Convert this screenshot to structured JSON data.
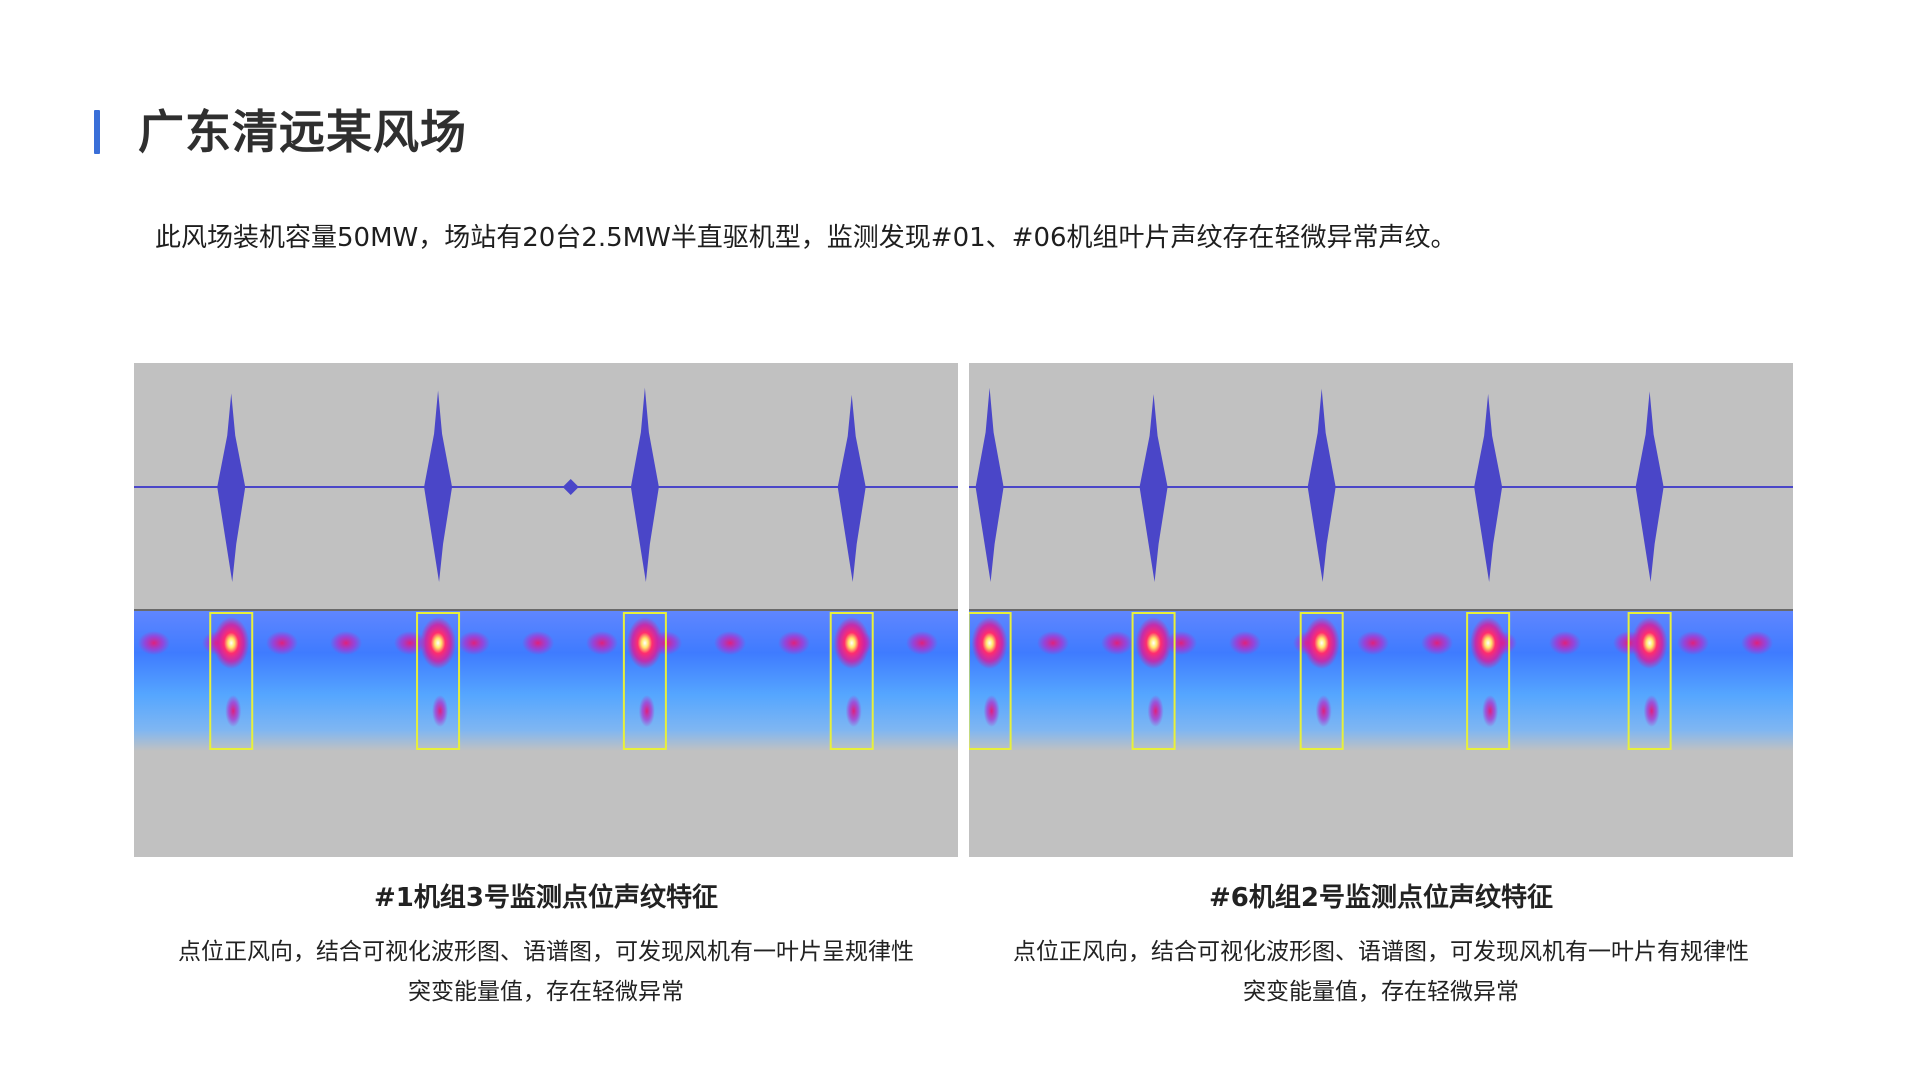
{
  "header": {
    "title": "广东清远某风场",
    "accent_color": "#3a6fd8"
  },
  "intro": "此风场装机容量50MW，场站有20台2.5MW半直驱机型，监测发现#01、#06机组叶片声纹存在轻微异常声纹。",
  "figures": [
    {
      "title": "#1机组3号监测点位声纹特征",
      "desc_line1": "点位正风向，结合可视化波形图、语谱图，可发现风机有一叶片呈规律性",
      "desc_line2": "突变能量值，存在轻微异常",
      "peaks": [
        0.118,
        0.369,
        0.62,
        0.871
      ],
      "small_peaks": [
        0.53
      ],
      "waveform_color": "#4a46c8",
      "highlight_color": "#e8f03a"
    },
    {
      "title": "#6机组2号监测点位声纹特征",
      "desc_line1": "点位正风向，结合可视化波形图、语谱图，可发现风机有一叶片有规律性",
      "desc_line2": "突变能量值，存在轻微异常",
      "peaks": [
        0.025,
        0.224,
        0.428,
        0.63,
        0.826
      ],
      "small_peaks": [],
      "waveform_color": "#4a46c8",
      "highlight_color": "#e8f03a"
    }
  ]
}
